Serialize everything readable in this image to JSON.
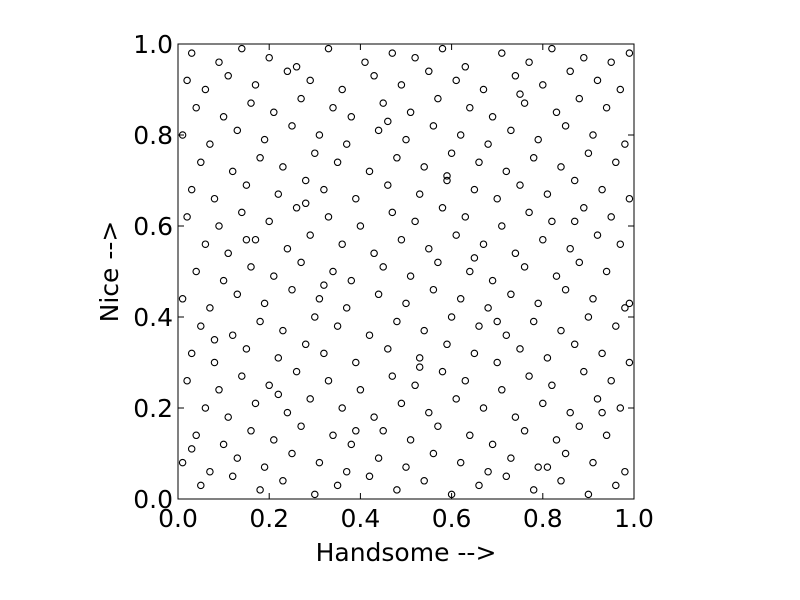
{
  "chart_data": {
    "type": "scatter",
    "title": "",
    "xlabel": "Handsome -->",
    "ylabel": "Nice -->",
    "xlim": [
      0.0,
      1.0
    ],
    "ylim": [
      0.0,
      1.0
    ],
    "x_ticks": [
      "0.0",
      "0.2",
      "0.4",
      "0.6",
      "0.8",
      "1.0"
    ],
    "y_ticks": [
      "0.0",
      "0.2",
      "0.4",
      "0.6",
      "0.8",
      "1.0"
    ],
    "grid": false,
    "legend": "none",
    "marker": "open-circle",
    "marker_color": "#000000",
    "series": [
      {
        "x": [
          0.03,
          0.09,
          0.14,
          0.2,
          0.26,
          0.33,
          0.41,
          0.47,
          0.52,
          0.58,
          0.63,
          0.71,
          0.77,
          0.82,
          0.89,
          0.95,
          0.99,
          0.02,
          0.06,
          0.11,
          0.17,
          0.24,
          0.29,
          0.36,
          0.43,
          0.49,
          0.55,
          0.61,
          0.67,
          0.74,
          0.8,
          0.86,
          0.92,
          0.97,
          0.04,
          0.1,
          0.16,
          0.21,
          0.27,
          0.34,
          0.38,
          0.45,
          0.51,
          0.57,
          0.64,
          0.69,
          0.76,
          0.83,
          0.88,
          0.94,
          0.01,
          0.07,
          0.13,
          0.19,
          0.25,
          0.31,
          0.37,
          0.44,
          0.5,
          0.56,
          0.62,
          0.68,
          0.73,
          0.79,
          0.85,
          0.91,
          0.98,
          0.05,
          0.12,
          0.18,
          0.23,
          0.3,
          0.35,
          0.42,
          0.48,
          0.54,
          0.6,
          0.66,
          0.72,
          0.78,
          0.84,
          0.9,
          0.96,
          0.03,
          0.08,
          0.15,
          0.22,
          0.28,
          0.32,
          0.39,
          0.46,
          0.53,
          0.59,
          0.65,
          0.7,
          0.75,
          0.81,
          0.87,
          0.93,
          0.99,
          0.02,
          0.09,
          0.14,
          0.2,
          0.26,
          0.33,
          0.4,
          0.47,
          0.52,
          0.58,
          0.63,
          0.71,
          0.77,
          0.82,
          0.89,
          0.95,
          0.06,
          0.11,
          0.17,
          0.24,
          0.29,
          0.36,
          0.43,
          0.49,
          0.55,
          0.61,
          0.67,
          0.74,
          0.8,
          0.86,
          0.92,
          0.97,
          0.04,
          0.1,
          0.16,
          0.21,
          0.27,
          0.34,
          0.38,
          0.45,
          0.51,
          0.57,
          0.64,
          0.69,
          0.76,
          0.83,
          0.88,
          0.94,
          0.01,
          0.07,
          0.13,
          0.19,
          0.25,
          0.31,
          0.37,
          0.44,
          0.5,
          0.56,
          0.62,
          0.68,
          0.73,
          0.79,
          0.85,
          0.91,
          0.98,
          0.05,
          0.12,
          0.18,
          0.23,
          0.3,
          0.35,
          0.42,
          0.48,
          0.54,
          0.6,
          0.66,
          0.72,
          0.78,
          0.84,
          0.9,
          0.96,
          0.03,
          0.08,
          0.15,
          0.22,
          0.28,
          0.32,
          0.39,
          0.46,
          0.53,
          0.59,
          0.65,
          0.7,
          0.75,
          0.81,
          0.87,
          0.93,
          0.99,
          0.02,
          0.09,
          0.14,
          0.2,
          0.26,
          0.33,
          0.4,
          0.47,
          0.52,
          0.58,
          0.63,
          0.71,
          0.77,
          0.82,
          0.89,
          0.95,
          0.06,
          0.11,
          0.17,
          0.24,
          0.29,
          0.36,
          0.43,
          0.49,
          0.55,
          0.61,
          0.67,
          0.74,
          0.8,
          0.86,
          0.92,
          0.97,
          0.04,
          0.1,
          0.16,
          0.21,
          0.27,
          0.34,
          0.38,
          0.45,
          0.51,
          0.57,
          0.64,
          0.69,
          0.76,
          0.83,
          0.88,
          0.94,
          0.01,
          0.07,
          0.13,
          0.19,
          0.25,
          0.31,
          0.37,
          0.44,
          0.5,
          0.56,
          0.62,
          0.68,
          0.73,
          0.79,
          0.85,
          0.91,
          0.98,
          0.05,
          0.12,
          0.18,
          0.23,
          0.3,
          0.35,
          0.42,
          0.48,
          0.54,
          0.6,
          0.66,
          0.72,
          0.78,
          0.84,
          0.9,
          0.96,
          0.03,
          0.08,
          0.15,
          0.22,
          0.28,
          0.32,
          0.39,
          0.46,
          0.53,
          0.59,
          0.65,
          0.7,
          0.75,
          0.81,
          0.87,
          0.93,
          0.99
        ],
        "y": [
          0.98,
          0.96,
          0.99,
          0.97,
          0.95,
          0.99,
          0.96,
          0.98,
          0.97,
          0.99,
          0.95,
          0.98,
          0.96,
          0.99,
          0.97,
          0.96,
          0.98,
          0.92,
          0.9,
          0.93,
          0.91,
          0.94,
          0.92,
          0.9,
          0.93,
          0.91,
          0.94,
          0.92,
          0.9,
          0.93,
          0.91,
          0.94,
          0.92,
          0.9,
          0.86,
          0.84,
          0.87,
          0.85,
          0.88,
          0.86,
          0.84,
          0.87,
          0.85,
          0.88,
          0.86,
          0.84,
          0.87,
          0.85,
          0.88,
          0.86,
          0.8,
          0.78,
          0.81,
          0.79,
          0.82,
          0.8,
          0.78,
          0.81,
          0.79,
          0.82,
          0.8,
          0.78,
          0.81,
          0.79,
          0.82,
          0.8,
          0.78,
          0.74,
          0.72,
          0.75,
          0.73,
          0.76,
          0.74,
          0.72,
          0.75,
          0.73,
          0.76,
          0.74,
          0.72,
          0.75,
          0.73,
          0.76,
          0.74,
          0.68,
          0.66,
          0.69,
          0.67,
          0.7,
          0.68,
          0.66,
          0.69,
          0.67,
          0.7,
          0.68,
          0.66,
          0.69,
          0.67,
          0.7,
          0.68,
          0.66,
          0.62,
          0.6,
          0.63,
          0.61,
          0.64,
          0.62,
          0.6,
          0.63,
          0.61,
          0.64,
          0.62,
          0.6,
          0.63,
          0.61,
          0.64,
          0.62,
          0.56,
          0.54,
          0.57,
          0.55,
          0.58,
          0.56,
          0.54,
          0.57,
          0.55,
          0.58,
          0.56,
          0.54,
          0.57,
          0.55,
          0.58,
          0.56,
          0.5,
          0.48,
          0.51,
          0.49,
          0.52,
          0.5,
          0.48,
          0.51,
          0.49,
          0.52,
          0.5,
          0.48,
          0.51,
          0.49,
          0.52,
          0.5,
          0.44,
          0.42,
          0.45,
          0.43,
          0.46,
          0.44,
          0.42,
          0.45,
          0.43,
          0.46,
          0.44,
          0.42,
          0.45,
          0.43,
          0.46,
          0.44,
          0.42,
          0.38,
          0.36,
          0.39,
          0.37,
          0.4,
          0.38,
          0.36,
          0.39,
          0.37,
          0.4,
          0.38,
          0.36,
          0.39,
          0.37,
          0.4,
          0.38,
          0.32,
          0.3,
          0.33,
          0.31,
          0.34,
          0.32,
          0.3,
          0.33,
          0.31,
          0.34,
          0.32,
          0.3,
          0.33,
          0.31,
          0.34,
          0.32,
          0.3,
          0.26,
          0.24,
          0.27,
          0.25,
          0.28,
          0.26,
          0.24,
          0.27,
          0.25,
          0.28,
          0.26,
          0.24,
          0.27,
          0.25,
          0.28,
          0.26,
          0.2,
          0.18,
          0.21,
          0.19,
          0.22,
          0.2,
          0.18,
          0.21,
          0.19,
          0.22,
          0.2,
          0.18,
          0.21,
          0.19,
          0.22,
          0.2,
          0.14,
          0.12,
          0.15,
          0.13,
          0.16,
          0.14,
          0.12,
          0.15,
          0.13,
          0.16,
          0.14,
          0.12,
          0.15,
          0.13,
          0.16,
          0.14,
          0.08,
          0.06,
          0.09,
          0.07,
          0.1,
          0.08,
          0.06,
          0.09,
          0.07,
          0.1,
          0.08,
          0.06,
          0.09,
          0.07,
          0.1,
          0.08,
          0.06,
          0.03,
          0.05,
          0.02,
          0.04,
          0.01,
          0.03,
          0.05,
          0.02,
          0.04,
          0.01,
          0.03,
          0.05,
          0.02,
          0.04,
          0.01,
          0.03,
          0.11,
          0.35,
          0.57,
          0.23,
          0.65,
          0.47,
          0.15,
          0.83,
          0.29,
          0.71,
          0.53,
          0.39,
          0.89,
          0.07,
          0.61,
          0.19,
          0.43
        ]
      }
    ]
  }
}
